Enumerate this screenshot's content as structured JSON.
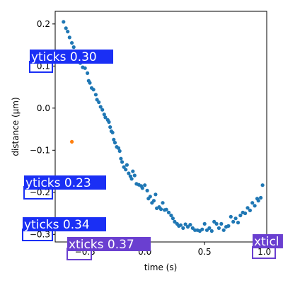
{
  "chart_data": {
    "type": "scatter",
    "xlabel": "time (s)",
    "ylabel": "distance (µm)",
    "xlim": [
      -0.75,
      1.02
    ],
    "ylim": [
      -0.318,
      0.23
    ],
    "xticks": [
      -0.5,
      0.0,
      0.5,
      1.0
    ],
    "xtick_labels": [
      "−0.5",
      "0.0",
      "0.5",
      "1.0"
    ],
    "yticks": [
      -0.3,
      -0.2,
      -0.1,
      0.0,
      0.1,
      0.2
    ],
    "ytick_labels": [
      "−0.3",
      "−0.2",
      "−0.1",
      "0.0",
      "0.1",
      "0.2"
    ],
    "grid": false,
    "series": [
      {
        "color": "#1f77b4",
        "points": [
          [
            -0.68,
            0.205
          ],
          [
            -0.66,
            0.19
          ],
          [
            -0.645,
            0.182
          ],
          [
            -0.63,
            0.168
          ],
          [
            -0.61,
            0.155
          ],
          [
            -0.595,
            0.145
          ],
          [
            -0.58,
            0.132
          ],
          [
            -0.56,
            0.118
          ],
          [
            -0.54,
            0.107
          ],
          [
            -0.52,
            0.097
          ],
          [
            -0.5,
            0.095
          ],
          [
            -0.48,
            0.083
          ],
          [
            -0.47,
            0.065
          ],
          [
            -0.46,
            0.06
          ],
          [
            -0.445,
            0.048
          ],
          [
            -0.43,
            0.044
          ],
          [
            -0.41,
            0.032
          ],
          [
            -0.4,
            0.02
          ],
          [
            -0.385,
            0.014
          ],
          [
            -0.37,
            0.003
          ],
          [
            -0.355,
            -0.004
          ],
          [
            -0.34,
            -0.015
          ],
          [
            -0.33,
            -0.022
          ],
          [
            -0.31,
            -0.028
          ],
          [
            -0.3,
            -0.033
          ],
          [
            -0.29,
            -0.045
          ],
          [
            -0.28,
            -0.055
          ],
          [
            -0.27,
            -0.058
          ],
          [
            -0.26,
            -0.075
          ],
          [
            -0.25,
            -0.082
          ],
          [
            -0.235,
            -0.092
          ],
          [
            -0.22,
            -0.095
          ],
          [
            -0.21,
            -0.102
          ],
          [
            -0.2,
            -0.12
          ],
          [
            -0.19,
            -0.128
          ],
          [
            -0.175,
            -0.14
          ],
          [
            -0.16,
            -0.146
          ],
          [
            -0.15,
            -0.135
          ],
          [
            -0.135,
            -0.155
          ],
          [
            -0.12,
            -0.162
          ],
          [
            -0.11,
            -0.168
          ],
          [
            -0.1,
            -0.15
          ],
          [
            -0.085,
            -0.16
          ],
          [
            -0.07,
            -0.18
          ],
          [
            -0.05,
            -0.182
          ],
          [
            -0.03,
            -0.185
          ],
          [
            -0.02,
            -0.19
          ],
          [
            0.0,
            -0.183
          ],
          [
            0.02,
            -0.196
          ],
          [
            0.03,
            -0.215
          ],
          [
            0.045,
            -0.21
          ],
          [
            0.06,
            -0.225
          ],
          [
            0.075,
            -0.22
          ],
          [
            0.09,
            -0.205
          ],
          [
            0.1,
            -0.238
          ],
          [
            0.12,
            -0.235
          ],
          [
            0.135,
            -0.24
          ],
          [
            0.15,
            -0.225
          ],
          [
            0.165,
            -0.242
          ],
          [
            0.18,
            -0.241
          ],
          [
            0.2,
            -0.248
          ],
          [
            0.22,
            -0.255
          ],
          [
            0.235,
            -0.262
          ],
          [
            0.25,
            -0.27
          ],
          [
            0.27,
            -0.275
          ],
          [
            0.285,
            -0.28
          ],
          [
            0.3,
            -0.278
          ],
          [
            0.32,
            -0.285
          ],
          [
            0.34,
            -0.276
          ],
          [
            0.36,
            -0.282
          ],
          [
            0.38,
            -0.277
          ],
          [
            0.4,
            -0.285
          ],
          [
            0.42,
            -0.29
          ],
          [
            0.44,
            -0.29
          ],
          [
            0.46,
            -0.292
          ],
          [
            0.48,
            -0.288
          ],
          [
            0.5,
            -0.275
          ],
          [
            0.52,
            -0.29
          ],
          [
            0.54,
            -0.285
          ],
          [
            0.56,
            -0.292
          ],
          [
            0.58,
            -0.27
          ],
          [
            0.6,
            -0.275
          ],
          [
            0.62,
            -0.285
          ],
          [
            0.64,
            -0.275
          ],
          [
            0.66,
            -0.29
          ],
          [
            0.68,
            -0.282
          ],
          [
            0.7,
            -0.28
          ],
          [
            0.72,
            -0.258
          ],
          [
            0.74,
            -0.27
          ],
          [
            0.76,
            -0.262
          ],
          [
            0.78,
            -0.272
          ],
          [
            0.8,
            -0.255
          ],
          [
            0.82,
            -0.248
          ],
          [
            0.84,
            -0.25
          ],
          [
            0.86,
            -0.237
          ],
          [
            0.88,
            -0.243
          ],
          [
            0.9,
            -0.225
          ],
          [
            0.92,
            -0.232
          ],
          [
            0.94,
            -0.215
          ],
          [
            0.95,
            -0.22
          ],
          [
            0.97,
            -0.213
          ],
          [
            0.985,
            -0.183
          ]
        ]
      },
      {
        "color": "#ff7f0e",
        "points": [
          [
            -0.61,
            -0.08
          ]
        ]
      }
    ]
  },
  "detections": [
    {
      "label": "yticks 0.30",
      "color": "#1a2ff5"
    },
    {
      "label": "yticks 0.23",
      "color": "#1a2ff5"
    },
    {
      "label": "yticks 0.34",
      "color": "#1a2ff5"
    },
    {
      "label": "xticks 0.37",
      "color": "#6a3fd0"
    },
    {
      "label": "xticl",
      "color": "#6a3fd0"
    }
  ]
}
